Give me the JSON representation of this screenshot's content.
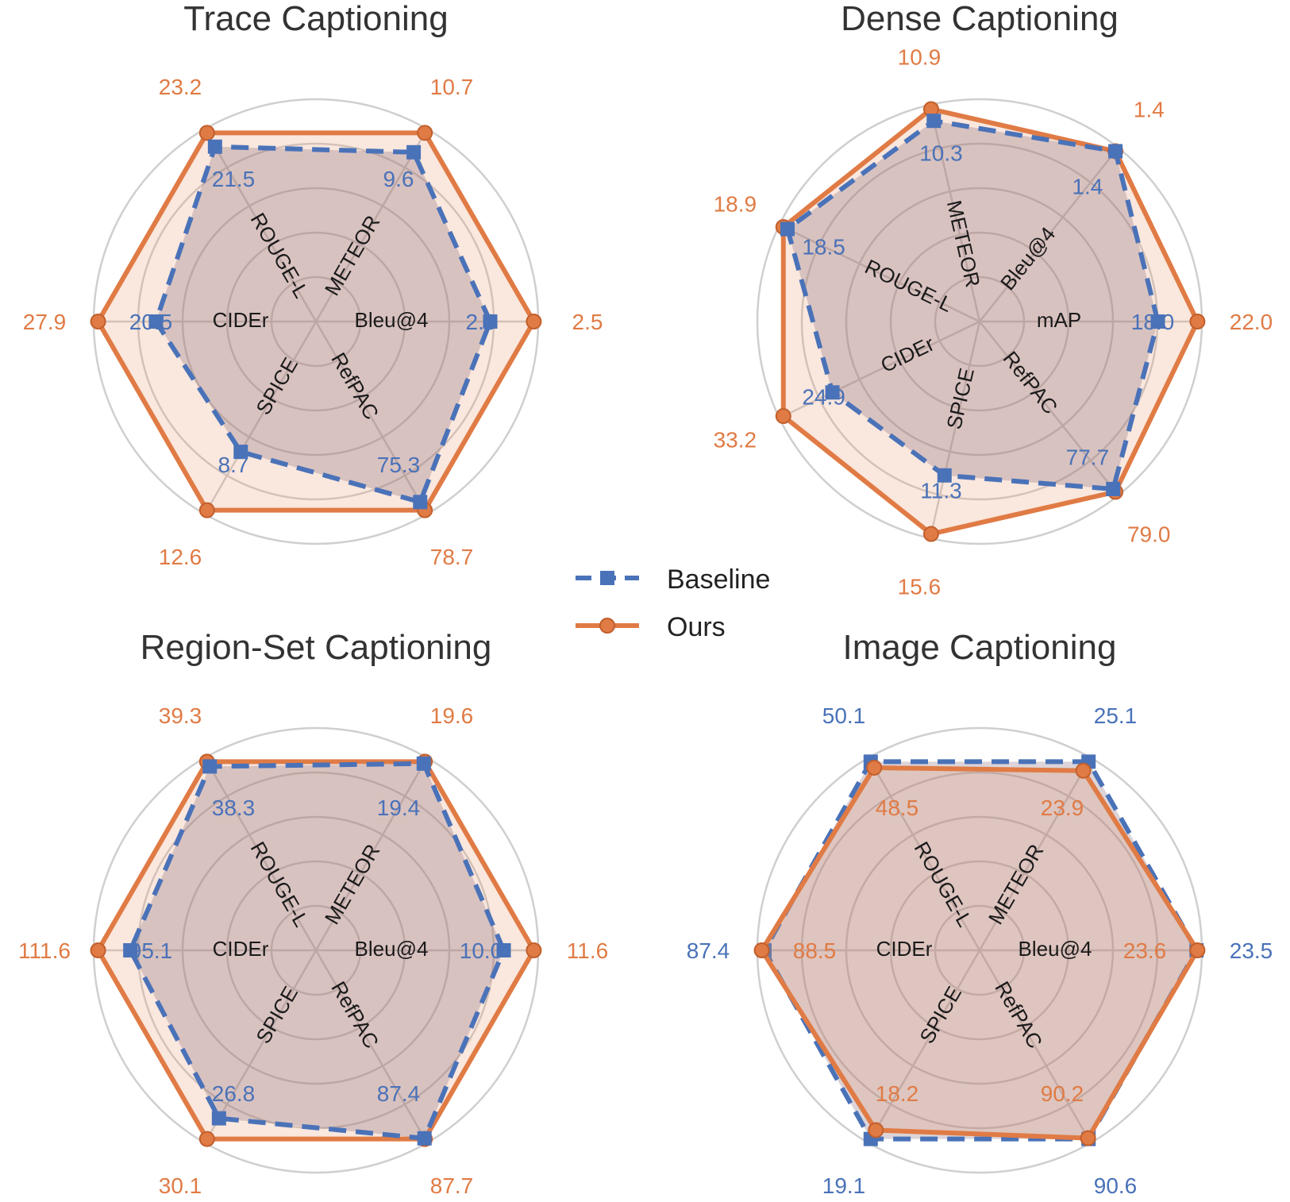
{
  "colors": {
    "baseline": "#4a72b8",
    "ours": "#e07b45",
    "ours_fill": "rgba(232,146,100,0.22)",
    "baseline_fill": "rgba(130,100,120,0.28)",
    "grid": "#cfcfcf"
  },
  "legend": {
    "baseline_label": "Baseline",
    "ours_label": "Ours"
  },
  "chart_data": [
    {
      "type": "radar",
      "title": "Trace Captioning",
      "axes": [
        "Bleu@4",
        "METEOR",
        "ROUGE-L",
        "CIDEr",
        "SPICE",
        "RefPAC"
      ],
      "series": [
        {
          "name": "Baseline",
          "values": [
            2.0,
            9.6,
            21.5,
            20.5,
            8.7,
            75.3
          ]
        },
        {
          "name": "Ours",
          "values": [
            2.5,
            10.7,
            23.2,
            27.9,
            12.6,
            78.7
          ]
        }
      ],
      "outer_labels_series": "Ours",
      "inner_labels_series": "Baseline"
    },
    {
      "type": "radar",
      "title": "Dense Captioning",
      "axes": [
        "mAP",
        "Bleu@4",
        "METEOR",
        "ROUGE-L",
        "CIDEr",
        "SPICE",
        "RefPAC"
      ],
      "series": [
        {
          "name": "Baseline",
          "values": [
            18.0,
            1.4,
            10.3,
            18.5,
            24.9,
            11.3,
            77.7
          ]
        },
        {
          "name": "Ours",
          "values": [
            22.0,
            1.4,
            10.9,
            18.9,
            33.2,
            15.6,
            79.0
          ]
        }
      ],
      "outer_labels_series": "Ours",
      "inner_labels_series": "Baseline"
    },
    {
      "type": "radar",
      "title": "Region-Set Captioning",
      "axes": [
        "Bleu@4",
        "METEOR",
        "ROUGE-L",
        "CIDEr",
        "SPICE",
        "RefPAC"
      ],
      "series": [
        {
          "name": "Baseline",
          "values": [
            10.0,
            19.4,
            38.3,
            95.1,
            26.8,
            87.4
          ]
        },
        {
          "name": "Ours",
          "values": [
            11.6,
            19.6,
            39.3,
            111.6,
            30.1,
            87.7
          ]
        }
      ],
      "outer_labels_series": "Ours",
      "inner_labels_series": "Baseline"
    },
    {
      "type": "radar",
      "title": "Image Captioning",
      "axes": [
        "Bleu@4",
        "METEOR",
        "ROUGE-L",
        "CIDEr",
        "SPICE",
        "RefPAC"
      ],
      "series": [
        {
          "name": "Baseline",
          "values": [
            23.5,
            25.1,
            50.1,
            87.4,
            19.1,
            90.6
          ]
        },
        {
          "name": "Ours",
          "values": [
            23.6,
            23.9,
            48.5,
            88.5,
            18.2,
            90.2
          ]
        }
      ],
      "outer_labels_series": "Baseline",
      "inner_labels_series": "Ours"
    }
  ]
}
